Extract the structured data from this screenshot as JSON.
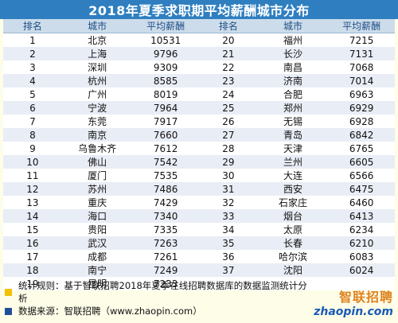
{
  "chart_data": {
    "type": "table",
    "title": "2018年夏季求职期平均薪酬城市分布",
    "columns": [
      "排名",
      "城市",
      "平均薪酬",
      "排名",
      "城市",
      "平均薪酬"
    ],
    "rows_left": [
      {
        "rank": "1",
        "city": "北京",
        "salary": "10531"
      },
      {
        "rank": "2",
        "city": "上海",
        "salary": "9796"
      },
      {
        "rank": "3",
        "city": "深圳",
        "salary": "9309"
      },
      {
        "rank": "4",
        "city": "杭州",
        "salary": "8585"
      },
      {
        "rank": "5",
        "city": "广州",
        "salary": "8019"
      },
      {
        "rank": "6",
        "city": "宁波",
        "salary": "7964"
      },
      {
        "rank": "7",
        "city": "东莞",
        "salary": "7917"
      },
      {
        "rank": "8",
        "city": "南京",
        "salary": "7660"
      },
      {
        "rank": "9",
        "city": "乌鲁木齐",
        "salary": "7612"
      },
      {
        "rank": "10",
        "city": "佛山",
        "salary": "7542"
      },
      {
        "rank": "11",
        "city": "厦门",
        "salary": "7535"
      },
      {
        "rank": "12",
        "city": "苏州",
        "salary": "7486"
      },
      {
        "rank": "13",
        "city": "重庆",
        "salary": "7429"
      },
      {
        "rank": "14",
        "city": "海口",
        "salary": "7340"
      },
      {
        "rank": "15",
        "city": "贵阳",
        "salary": "7335"
      },
      {
        "rank": "16",
        "city": "武汉",
        "salary": "7263"
      },
      {
        "rank": "17",
        "city": "成都",
        "salary": "7261"
      },
      {
        "rank": "18",
        "city": "南宁",
        "salary": "7249"
      },
      {
        "rank": "19",
        "city": "昆明",
        "salary": "7233"
      }
    ],
    "rows_right": [
      {
        "rank": "20",
        "city": "福州",
        "salary": "7215"
      },
      {
        "rank": "21",
        "city": "长沙",
        "salary": "7131"
      },
      {
        "rank": "22",
        "city": "南昌",
        "salary": "7068"
      },
      {
        "rank": "23",
        "city": "济南",
        "salary": "7014"
      },
      {
        "rank": "24",
        "city": "合肥",
        "salary": "6963"
      },
      {
        "rank": "25",
        "city": "郑州",
        "salary": "6929"
      },
      {
        "rank": "26",
        "city": "无锡",
        "salary": "6928"
      },
      {
        "rank": "27",
        "city": "青岛",
        "salary": "6842"
      },
      {
        "rank": "28",
        "city": "天津",
        "salary": "6765"
      },
      {
        "rank": "29",
        "city": "兰州",
        "salary": "6605"
      },
      {
        "rank": "30",
        "city": "大连",
        "salary": "6566"
      },
      {
        "rank": "31",
        "city": "西安",
        "salary": "6475"
      },
      {
        "rank": "32",
        "city": "石家庄",
        "salary": "6460"
      },
      {
        "rank": "33",
        "city": "烟台",
        "salary": "6413"
      },
      {
        "rank": "34",
        "city": "太原",
        "salary": "6234"
      },
      {
        "rank": "35",
        "city": "长春",
        "salary": "6210"
      },
      {
        "rank": "36",
        "city": "哈尔滨",
        "salary": "6083"
      },
      {
        "rank": "37",
        "city": "沈阳",
        "salary": "6024"
      }
    ]
  },
  "notes": [
    {
      "text": "统计规则：基于智联招聘2018年夏季在线招聘数据库的数据监测统计分析",
      "color": "#f2c100"
    },
    {
      "text": "数据来源：智联招聘（www.zhaopin.com）",
      "color": "#1f4f9a"
    }
  ],
  "logo": {
    "name": "智联招聘",
    "url": "zhaopin.com"
  },
  "colors": {
    "header": "#2f7fc0",
    "table_header": "#ccdcea",
    "stripe": "#e9edf5",
    "background": "#fdfde8"
  }
}
